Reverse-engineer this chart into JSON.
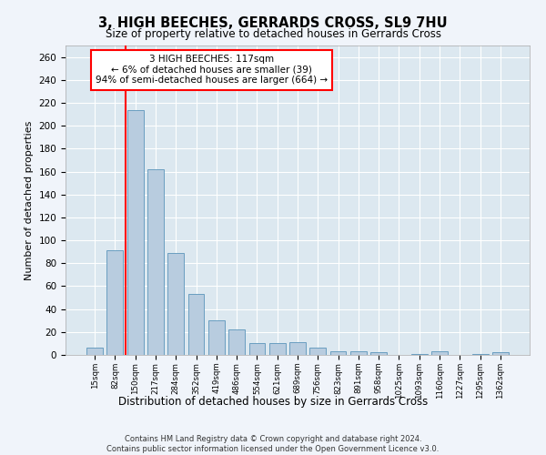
{
  "title": "3, HIGH BEECHES, GERRARDS CROSS, SL9 7HU",
  "subtitle": "Size of property relative to detached houses in Gerrards Cross",
  "xlabel": "Distribution of detached houses by size in Gerrards Cross",
  "ylabel": "Number of detached properties",
  "categories": [
    "15sqm",
    "82sqm",
    "150sqm",
    "217sqm",
    "284sqm",
    "352sqm",
    "419sqm",
    "486sqm",
    "554sqm",
    "621sqm",
    "689sqm",
    "756sqm",
    "823sqm",
    "891sqm",
    "958sqm",
    "1025sqm",
    "1093sqm",
    "1160sqm",
    "1227sqm",
    "1295sqm",
    "1362sqm"
  ],
  "values": [
    6,
    91,
    214,
    162,
    89,
    53,
    30,
    22,
    10,
    10,
    11,
    6,
    3,
    3,
    2,
    0,
    1,
    3,
    0,
    1,
    2
  ],
  "bar_color": "#b8ccdf",
  "bar_edge_color": "#6a9ec0",
  "vline_x": 1.5,
  "vline_color": "red",
  "annotation_text": "3 HIGH BEECHES: 117sqm\n← 6% of detached houses are smaller (39)\n94% of semi-detached houses are larger (664) →",
  "annotation_box_color": "white",
  "annotation_box_edge_color": "red",
  "ylim": [
    0,
    270
  ],
  "yticks": [
    0,
    20,
    40,
    60,
    80,
    100,
    120,
    140,
    160,
    180,
    200,
    220,
    240,
    260
  ],
  "footer": "Contains HM Land Registry data © Crown copyright and database right 2024.\nContains public sector information licensed under the Open Government Licence v3.0.",
  "fig_bg_color": "#f0f4fa",
  "plot_bg_color": "#dce8f0"
}
